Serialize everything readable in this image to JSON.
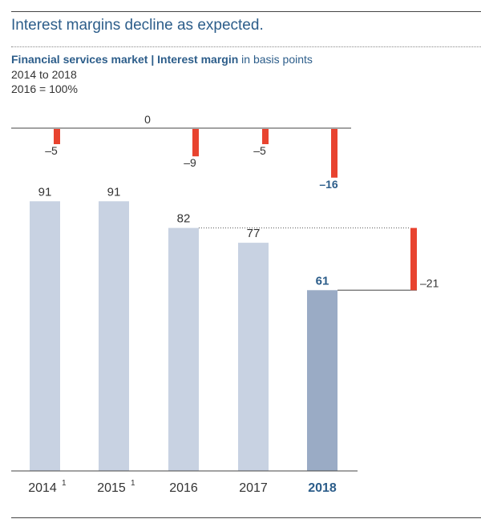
{
  "headline": "Interest margins decline as expected.",
  "chart_title_bold": "Financial services market | Interest margin",
  "chart_title_unit": "in basis points",
  "period": "2014 to 2018",
  "baseline_note": "2016 = 100%",
  "colors": {
    "bar": "#c8d2e2",
    "bar_highlight": "#9aabc5",
    "change": "#e8432f",
    "highlight_text": "#2c5d8a"
  },
  "chart_data": {
    "type": "bar",
    "categories": [
      "2014",
      "2015",
      "2016",
      "2017",
      "2018"
    ],
    "category_footnotes": [
      "1",
      "1",
      "",
      "",
      ""
    ],
    "highlight_index": 4,
    "values": [
      91,
      91,
      82,
      77,
      61
    ],
    "value_labels": [
      "91",
      "91",
      "82",
      "77",
      "61"
    ],
    "year_on_year_changes": [
      -5,
      0,
      -9,
      -5,
      -16
    ],
    "change_labels": [
      "–5",
      "0",
      "–9",
      "–5",
      "–16"
    ],
    "cumulative_change": {
      "from_category": "2016",
      "to_category": "2018",
      "value": -21,
      "label": "–21"
    },
    "ylim": [
      0,
      100
    ]
  }
}
